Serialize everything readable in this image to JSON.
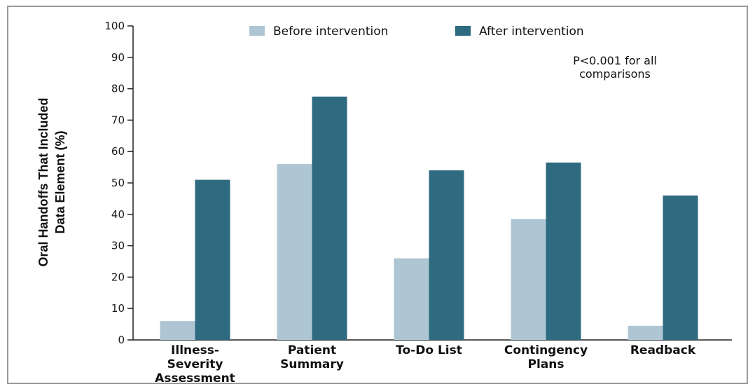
{
  "chart_data": {
    "type": "bar",
    "title": "",
    "xlabel": "",
    "ylabel_lines": [
      "Oral Handoffs That Included",
      "Data Element (%)"
    ],
    "ylim": [
      0,
      100
    ],
    "yticks": [
      0,
      10,
      20,
      30,
      40,
      50,
      60,
      70,
      80,
      90,
      100
    ],
    "categories": [
      [
        "Illness-",
        "Severity",
        "Assessment"
      ],
      [
        "Patient",
        "Summary"
      ],
      [
        "To-Do List"
      ],
      [
        "Contingency",
        "Plans"
      ],
      [
        "Readback"
      ]
    ],
    "series": [
      {
        "name": "Before intervention",
        "color": "#aec6d4",
        "values": [
          6,
          56,
          26,
          38.5,
          4.5
        ]
      },
      {
        "name": "After intervention",
        "color": "#2e6a80",
        "values": [
          51,
          77.5,
          54,
          56.5,
          46
        ]
      }
    ],
    "annotation_lines": [
      "P<0.001 for all",
      "comparisons"
    ],
    "legend_position": "top"
  }
}
